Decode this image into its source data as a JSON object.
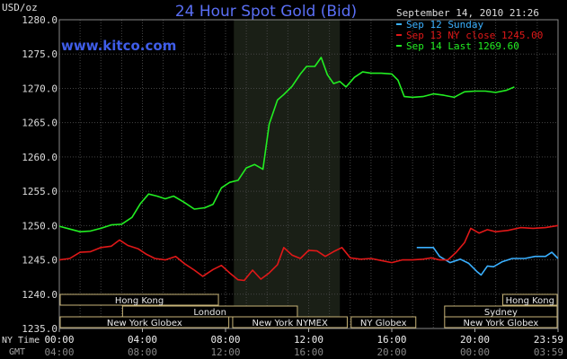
{
  "header": {
    "unit": "USD/oz",
    "title": "24 Hour Spot Gold (Bid)",
    "site": "www.kitco.com",
    "timestamp": "September 14, 2010 21:26"
  },
  "legend": [
    {
      "label": "Sep 12 Sunday",
      "color": "#3ab0ff"
    },
    {
      "label": "Sep 13 NY close 1245.00",
      "color": "#e01818"
    },
    {
      "label": "Sep 14 Last 1269.60",
      "color": "#22ee22"
    }
  ],
  "sessions": {
    "row1": [
      {
        "label": "Hong Kong",
        "start": 0,
        "end": 7.7
      },
      {
        "label": "Hong Kong",
        "start": 21.3,
        "end": 24
      }
    ],
    "row2": [
      {
        "label": "London",
        "start": 3,
        "end": 11.5
      },
      {
        "label": "Sydney",
        "start": 18.5,
        "end": 24
      }
    ],
    "row3": [
      {
        "label": "New York Globex",
        "start": 0,
        "end": 8.2
      },
      {
        "label": "New York NYMEX",
        "start": 8.3,
        "end": 13.9
      },
      {
        "label": "NY Globex",
        "start": 14,
        "end": 17.2
      },
      {
        "label": "New York Globex",
        "start": 18.5,
        "end": 24
      }
    ]
  },
  "axis": {
    "ny_label": "NY Time",
    "gmt_label": "GMT",
    "ny_ticks": [
      "00:00",
      "04:00",
      "08:00",
      "12:00",
      "16:00",
      "20:00",
      "23:59"
    ],
    "gmt_ticks": [
      "04:00",
      "08:00",
      "12:00",
      "16:00",
      "20:00",
      "00:00",
      "03:59"
    ]
  },
  "chart_data": {
    "type": "line",
    "title": "24 Hour Spot Gold (Bid)",
    "ylabel": "USD/oz",
    "xlabel": "NY Time",
    "xlim": [
      0,
      24
    ],
    "ylim": [
      1235,
      1280
    ],
    "yticks": [
      1235,
      1240,
      1245,
      1250,
      1255,
      1260,
      1265,
      1270,
      1275,
      1280
    ],
    "ytick_labels": [
      "1235.0",
      "1240.0",
      "1245.0",
      "1250.0",
      "1255.0",
      "1260.0",
      "1265.0",
      "1270.0",
      "1275.0",
      "1280.0"
    ],
    "grid": true,
    "highlight_band": [
      8.4,
      13.5
    ],
    "legend_position": "top-right",
    "series": [
      {
        "name": "Sep 12 Sunday",
        "color": "#3ab0ff",
        "points": [
          [
            17.2,
            1246.8
          ],
          [
            18.0,
            1246.8
          ],
          [
            18.3,
            1245.5
          ],
          [
            18.8,
            1244.6
          ],
          [
            19.3,
            1245.1
          ],
          [
            19.7,
            1244.5
          ],
          [
            20.1,
            1243.3
          ],
          [
            20.3,
            1242.8
          ],
          [
            20.6,
            1244.1
          ],
          [
            20.9,
            1244.0
          ],
          [
            21.3,
            1244.7
          ],
          [
            21.8,
            1245.2
          ],
          [
            22.4,
            1245.2
          ],
          [
            22.9,
            1245.5
          ],
          [
            23.4,
            1245.5
          ],
          [
            23.7,
            1246.1
          ],
          [
            24.0,
            1245.2
          ]
        ]
      },
      {
        "name": "Sep 13 NY close 1245.00",
        "color": "#e01818",
        "points": [
          [
            0.0,
            1245.0
          ],
          [
            0.5,
            1245.2
          ],
          [
            1.0,
            1246.1
          ],
          [
            1.5,
            1246.2
          ],
          [
            2.0,
            1246.8
          ],
          [
            2.5,
            1247.0
          ],
          [
            2.9,
            1247.9
          ],
          [
            3.3,
            1247.1
          ],
          [
            3.8,
            1246.6
          ],
          [
            4.2,
            1245.8
          ],
          [
            4.6,
            1245.2
          ],
          [
            5.1,
            1245.0
          ],
          [
            5.6,
            1245.5
          ],
          [
            6.0,
            1244.5
          ],
          [
            6.5,
            1243.5
          ],
          [
            6.9,
            1242.6
          ],
          [
            7.4,
            1243.6
          ],
          [
            7.8,
            1244.2
          ],
          [
            8.2,
            1243.1
          ],
          [
            8.6,
            1242.1
          ],
          [
            8.9,
            1242.0
          ],
          [
            9.3,
            1243.5
          ],
          [
            9.7,
            1242.2
          ],
          [
            10.1,
            1243.1
          ],
          [
            10.5,
            1244.3
          ],
          [
            10.8,
            1246.8
          ],
          [
            11.2,
            1245.7
          ],
          [
            11.6,
            1245.2
          ],
          [
            12.0,
            1246.4
          ],
          [
            12.4,
            1246.3
          ],
          [
            12.8,
            1245.5
          ],
          [
            13.2,
            1246.2
          ],
          [
            13.6,
            1246.8
          ],
          [
            14.0,
            1245.3
          ],
          [
            14.5,
            1245.1
          ],
          [
            15.0,
            1245.2
          ],
          [
            15.5,
            1244.9
          ],
          [
            16.0,
            1244.6
          ],
          [
            16.5,
            1245.0
          ],
          [
            17.0,
            1245.0
          ],
          [
            17.5,
            1245.1
          ],
          [
            17.9,
            1245.3
          ],
          [
            18.3,
            1245.0
          ],
          [
            18.7,
            1245.0
          ],
          [
            19.1,
            1246.1
          ],
          [
            19.5,
            1247.5
          ],
          [
            19.8,
            1249.6
          ],
          [
            20.2,
            1248.9
          ],
          [
            20.6,
            1249.4
          ],
          [
            21.0,
            1249.1
          ],
          [
            21.6,
            1249.3
          ],
          [
            22.2,
            1249.7
          ],
          [
            22.8,
            1249.6
          ],
          [
            23.4,
            1249.7
          ],
          [
            24.0,
            1250.0
          ]
        ]
      },
      {
        "name": "Sep 14 Last 1269.60",
        "color": "#22ee22",
        "points": [
          [
            0.0,
            1249.9
          ],
          [
            0.5,
            1249.5
          ],
          [
            1.0,
            1249.1
          ],
          [
            1.5,
            1249.2
          ],
          [
            2.0,
            1249.6
          ],
          [
            2.5,
            1250.1
          ],
          [
            3.0,
            1250.2
          ],
          [
            3.5,
            1251.2
          ],
          [
            3.9,
            1253.2
          ],
          [
            4.3,
            1254.6
          ],
          [
            4.7,
            1254.3
          ],
          [
            5.1,
            1253.9
          ],
          [
            5.5,
            1254.3
          ],
          [
            6.0,
            1253.4
          ],
          [
            6.5,
            1252.4
          ],
          [
            7.0,
            1252.6
          ],
          [
            7.4,
            1253.1
          ],
          [
            7.8,
            1255.5
          ],
          [
            8.2,
            1256.3
          ],
          [
            8.6,
            1256.6
          ],
          [
            9.0,
            1258.4
          ],
          [
            9.4,
            1258.9
          ],
          [
            9.8,
            1258.2
          ],
          [
            10.1,
            1264.8
          ],
          [
            10.5,
            1268.3
          ],
          [
            10.8,
            1269.1
          ],
          [
            11.2,
            1270.3
          ],
          [
            11.6,
            1272.1
          ],
          [
            11.9,
            1273.2
          ],
          [
            12.3,
            1273.2
          ],
          [
            12.6,
            1274.5
          ],
          [
            12.9,
            1272.0
          ],
          [
            13.2,
            1270.7
          ],
          [
            13.5,
            1271.0
          ],
          [
            13.8,
            1270.2
          ],
          [
            14.2,
            1271.6
          ],
          [
            14.6,
            1272.4
          ],
          [
            15.0,
            1272.2
          ],
          [
            15.5,
            1272.2
          ],
          [
            16.0,
            1272.1
          ],
          [
            16.3,
            1271.2
          ],
          [
            16.6,
            1268.8
          ],
          [
            17.0,
            1268.7
          ],
          [
            17.5,
            1268.8
          ],
          [
            18.0,
            1269.2
          ],
          [
            18.5,
            1269.0
          ],
          [
            19.0,
            1268.7
          ],
          [
            19.5,
            1269.5
          ],
          [
            20.0,
            1269.6
          ],
          [
            20.5,
            1269.6
          ],
          [
            21.0,
            1269.4
          ],
          [
            21.5,
            1269.7
          ],
          [
            21.9,
            1270.2
          ]
        ]
      }
    ]
  }
}
